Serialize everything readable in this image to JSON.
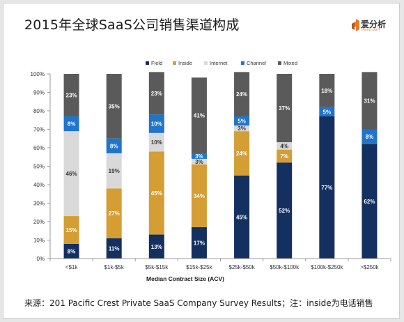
{
  "header": {
    "title": "2015年全球SaaS公司销售渠道构成"
  },
  "brand": {
    "name": "爱分析",
    "tagline": "ifenxi.com",
    "icon": "ifenxi-logo-icon",
    "color": "#e07b2a"
  },
  "footer": {
    "source": "来源：201 Pacific Crest Private SaaS Company Survey Results；注：inside为电话销售"
  },
  "chart_data": {
    "type": "bar",
    "stacked": true,
    "title": "",
    "xlabel": "Median Contract Size (ACV)",
    "ylabel": "",
    "ylim": [
      0,
      100
    ],
    "yticks": [
      "0%",
      "10%",
      "20%",
      "30%",
      "40%",
      "50%",
      "60%",
      "70%",
      "80%",
      "90%",
      "100%"
    ],
    "categories": [
      "<$1k",
      "$1k-$5k",
      "$5k-$15k",
      "$15k-$25k",
      "$25k-$50k",
      "$50k-$100k",
      "$100k-$250k",
      ">$250k"
    ],
    "legend_position": "top-right",
    "grid": false,
    "series": [
      {
        "name": "Field",
        "color": "#14305f",
        "label_color": "#ffffff",
        "values": [
          8,
          11,
          13,
          17,
          45,
          52,
          77,
          62
        ],
        "labels": [
          "8%",
          "11%",
          "13%",
          "17%",
          "45%",
          "52%",
          "77%",
          "62%"
        ]
      },
      {
        "name": "Inside",
        "color": "#d49e34",
        "label_color": "#ffffff",
        "values": [
          15,
          27,
          45,
          34,
          24,
          7,
          0,
          0
        ],
        "labels": [
          "15%",
          "27%",
          "45%",
          "34%",
          "24%",
          "7%",
          "",
          ""
        ]
      },
      {
        "name": "Internet",
        "color": "#d9d9d9",
        "label_color": "#333333",
        "values": [
          46,
          19,
          10,
          3,
          3,
          4,
          0,
          0
        ],
        "labels": [
          "46%",
          "19%",
          "10%",
          "3%",
          "3%",
          "4%",
          "",
          ""
        ]
      },
      {
        "name": "Channel",
        "color": "#1f74cc",
        "label_color": "#ffffff",
        "values": [
          8,
          8,
          10,
          3,
          5,
          0,
          5,
          8
        ],
        "labels": [
          "8%",
          "8%",
          "10%",
          "3%",
          "5%",
          "",
          "5%",
          "8%"
        ]
      },
      {
        "name": "Mixed",
        "color": "#5a5a5a",
        "label_color": "#ffffff",
        "values": [
          23,
          35,
          23,
          41,
          24,
          37,
          18,
          31
        ],
        "labels": [
          "23%",
          "35%",
          "23%",
          "41%",
          "24%",
          "37%",
          "18%",
          "31%"
        ]
      }
    ]
  }
}
